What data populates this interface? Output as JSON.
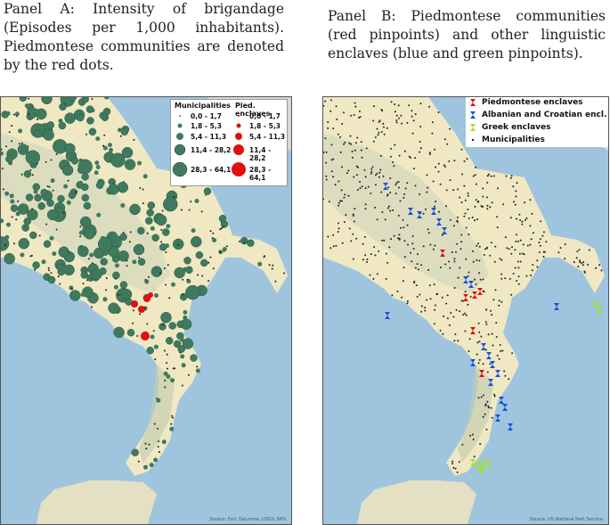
{
  "panel_a": {
    "caption": "Panel A: Intensity of brigandage (Episodes per 1,000 inhabitants). Piedmontese communities are denoted by the red dots.",
    "legend": {
      "col1_title": "Municipalities",
      "col2_title": "Pied. enclaves",
      "classes": [
        "0,0 - 1,7",
        "1,8 - 5,3",
        "5,4 - 11,3",
        "11,4 - 28,2",
        "28,3 - 64,1"
      ]
    },
    "credit": "Source: Esri, DeLorme, USGS, NPS",
    "colors": {
      "municipality": "#3f7a5e",
      "enclave": "#e01010"
    }
  },
  "panel_b": {
    "caption": "Panel B: Piedmontese communities (red pinpoints) and other linguistic enclaves (blue and green pinpoints).",
    "legend": {
      "items": [
        {
          "label": "Piedmontese enclaves",
          "color": "#e01010"
        },
        {
          "label": "Albanian and Croatian encl.",
          "color": "#1a4fd8"
        },
        {
          "label": "Greek enclaves",
          "color": "#a6e01a"
        },
        {
          "label": "Municipalities",
          "color": "#222222"
        }
      ]
    },
    "credit": "Source: US National Park Service"
  },
  "map_colors": {
    "sea": "#9fc4de",
    "land": "#efe8c3",
    "relief": "#cfd6bb",
    "other_land": "#d9d9cf"
  }
}
